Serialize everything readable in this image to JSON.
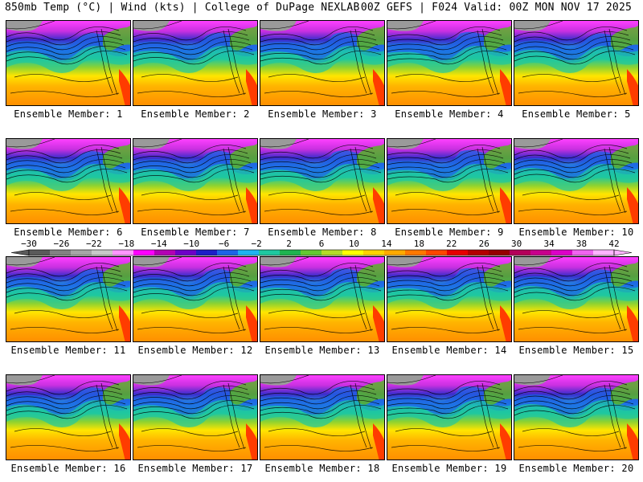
{
  "header": {
    "title_left": "850mb Temp (°C) | Wind (kts) | College of DuPage NEXLAB",
    "title_right": "00Z GEFS | F024 Valid: 00Z MON NOV 17 2025"
  },
  "members": [
    {
      "label": "Ensemble Member: 1"
    },
    {
      "label": "Ensemble Member: 2"
    },
    {
      "label": "Ensemble Member: 3"
    },
    {
      "label": "Ensemble Member: 4"
    },
    {
      "label": "Ensemble Member: 5"
    },
    {
      "label": "Ensemble Member: 6"
    },
    {
      "label": "Ensemble Member: 7"
    },
    {
      "label": "Ensemble Member: 8"
    },
    {
      "label": "Ensemble Member: 9"
    },
    {
      "label": "Ensemble Member: 10"
    },
    {
      "label": "Ensemble Member: 11"
    },
    {
      "label": "Ensemble Member: 12"
    },
    {
      "label": "Ensemble Member: 13"
    },
    {
      "label": "Ensemble Member: 14"
    },
    {
      "label": "Ensemble Member: 15"
    },
    {
      "label": "Ensemble Member: 16"
    },
    {
      "label": "Ensemble Member: 17"
    },
    {
      "label": "Ensemble Member: 18"
    },
    {
      "label": "Ensemble Member: 19"
    },
    {
      "label": "Ensemble Member: 20"
    }
  ],
  "colorbar": {
    "ticks": [
      "−30",
      "−26",
      "−22",
      "−18",
      "−14",
      "−10",
      "−6",
      "−2",
      "2",
      "6",
      "10",
      "14",
      "18",
      "22",
      "26",
      "30",
      "34",
      "38",
      "42"
    ],
    "colors": [
      "#5a5a5a",
      "#828282",
      "#a6a6a6",
      "#c8c8c8",
      "#ff96ff",
      "#ff00ff",
      "#b400b4",
      "#6e00c8",
      "#1e1ec8",
      "#1e64e6",
      "#1eb4f0",
      "#1ec8a0",
      "#1eb450",
      "#64c832",
      "#b4dc28",
      "#ffff00",
      "#ffd200",
      "#ffaa00",
      "#ff7800",
      "#ff4600",
      "#e60000",
      "#b40000",
      "#960000",
      "#b4005a",
      "#c8008c",
      "#dc00c8",
      "#f064f0",
      "#ffb4ff"
    ]
  }
}
